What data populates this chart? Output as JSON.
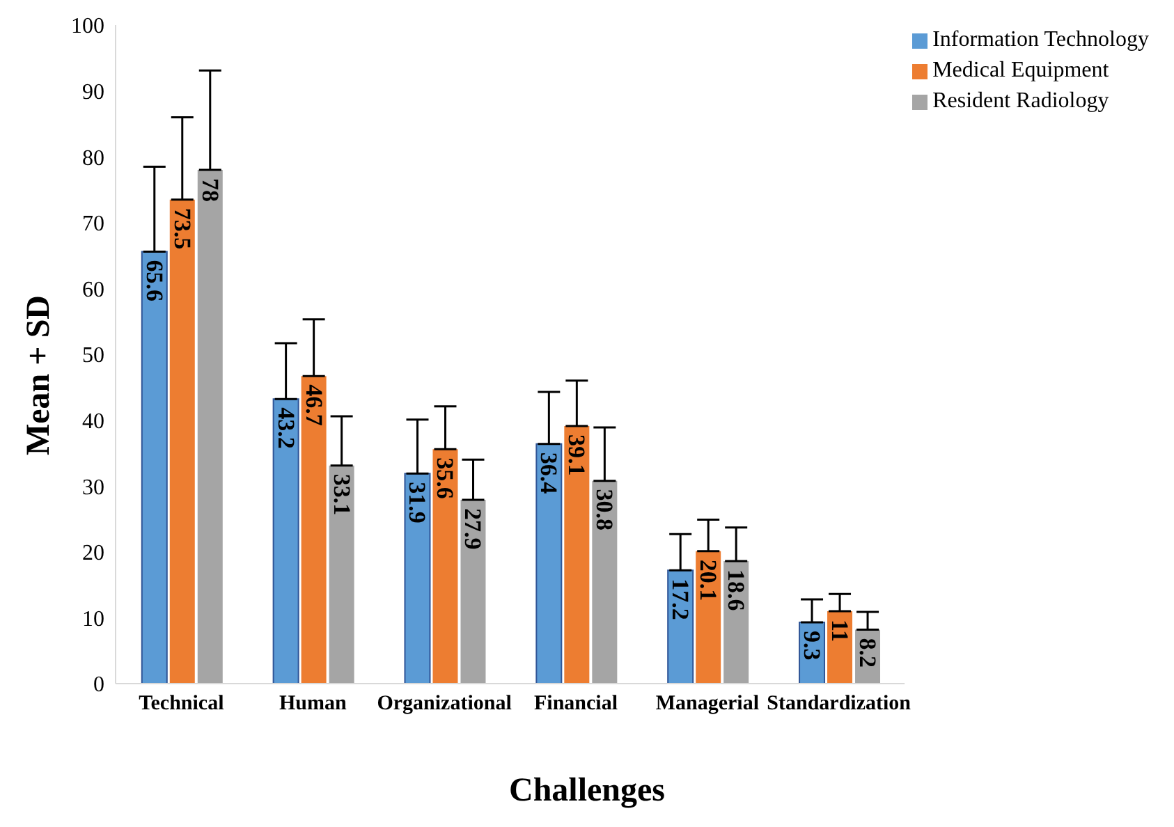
{
  "chart_data": {
    "type": "bar",
    "xlabel": "Challenges",
    "ylabel": "Mean + SD",
    "categories": [
      "Technical",
      "Human",
      "Organizational",
      "Financial",
      "Managerial",
      "Standardization"
    ],
    "series": [
      {
        "name": "Information Technology",
        "color": "#5b9bd5",
        "values": [
          65.6,
          43.2,
          31.9,
          36.4,
          17.2,
          9.3
        ],
        "errors": [
          [
            65.6,
            78.5
          ],
          [
            43.2,
            51.7
          ],
          [
            31.9,
            40.1
          ],
          [
            36.4,
            44.3
          ],
          [
            17.2,
            22.7
          ],
          [
            9.3,
            12.8
          ]
        ]
      },
      {
        "name": "Medical Equipment",
        "color": "#ed7d31",
        "values": [
          73.5,
          46.7,
          35.6,
          39.1,
          20.1,
          11
        ],
        "errors": [
          [
            73.5,
            86.0
          ],
          [
            46.7,
            55.3
          ],
          [
            35.6,
            42.1
          ],
          [
            39.1,
            46.0
          ],
          [
            20.1,
            24.9
          ],
          [
            11,
            13.6
          ]
        ]
      },
      {
        "name": "Resident Radiology",
        "color": "#a5a5a5",
        "values": [
          78,
          33.1,
          27.9,
          30.8,
          18.6,
          8.2
        ],
        "errors": [
          [
            78,
            93.1
          ],
          [
            33.1,
            40.6
          ],
          [
            27.9,
            34.0
          ],
          [
            30.8,
            38.9
          ],
          [
            18.6,
            23.7
          ],
          [
            8.2,
            10.9
          ]
        ]
      }
    ],
    "ylim": [
      0,
      100
    ],
    "yticks": [
      0,
      10,
      20,
      30,
      40,
      50,
      60,
      70,
      80,
      90,
      100
    ],
    "grid": false,
    "legend": "top right",
    "data_labels": true
  }
}
